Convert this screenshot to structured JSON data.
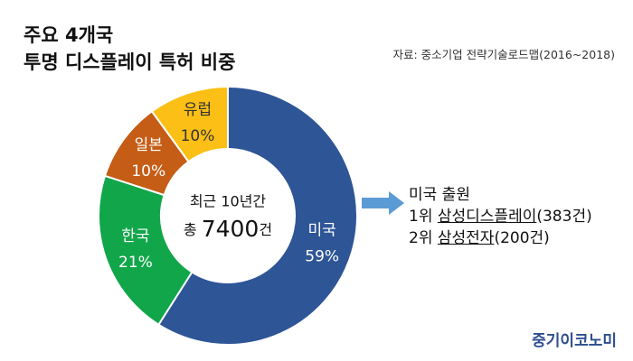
{
  "title": {
    "line1": "주요 4개국",
    "line2": "투명 디스플레이 특허 비중"
  },
  "source": "자료: 중소기업 전략기술로드맵(2016~2018)",
  "chart_data": {
    "type": "pie",
    "title": "주요 4개국 투명 디스플레이 특허 비중",
    "center_line1": "최근 10년간",
    "center_prefix": "총 ",
    "center_value": "7400",
    "center_suffix": "건",
    "slices": [
      {
        "label": "미국",
        "value": 59,
        "display": "59%",
        "color": "#2e5596",
        "text_color": "#ffffff"
      },
      {
        "label": "한국",
        "value": 21,
        "display": "21%",
        "color": "#11a64a",
        "text_color": "#ffffff"
      },
      {
        "label": "일본",
        "value": 10,
        "display": "10%",
        "color": "#c55d16",
        "text_color": "#ffffff"
      },
      {
        "label": "유럽",
        "value": 10,
        "display": "10%",
        "color": "#fbbf15",
        "text_color": "#333333"
      }
    ]
  },
  "note": {
    "heading": "미국 출원",
    "line1_rank": "1위 ",
    "line1_name": "삼성디스플레이",
    "line1_count": "(383건)",
    "line2_rank": "2위 ",
    "line2_name": "삼성전자",
    "line2_count": "(200건)"
  },
  "arrow_color": "#5b9bd5",
  "brand": "중기이코노미"
}
